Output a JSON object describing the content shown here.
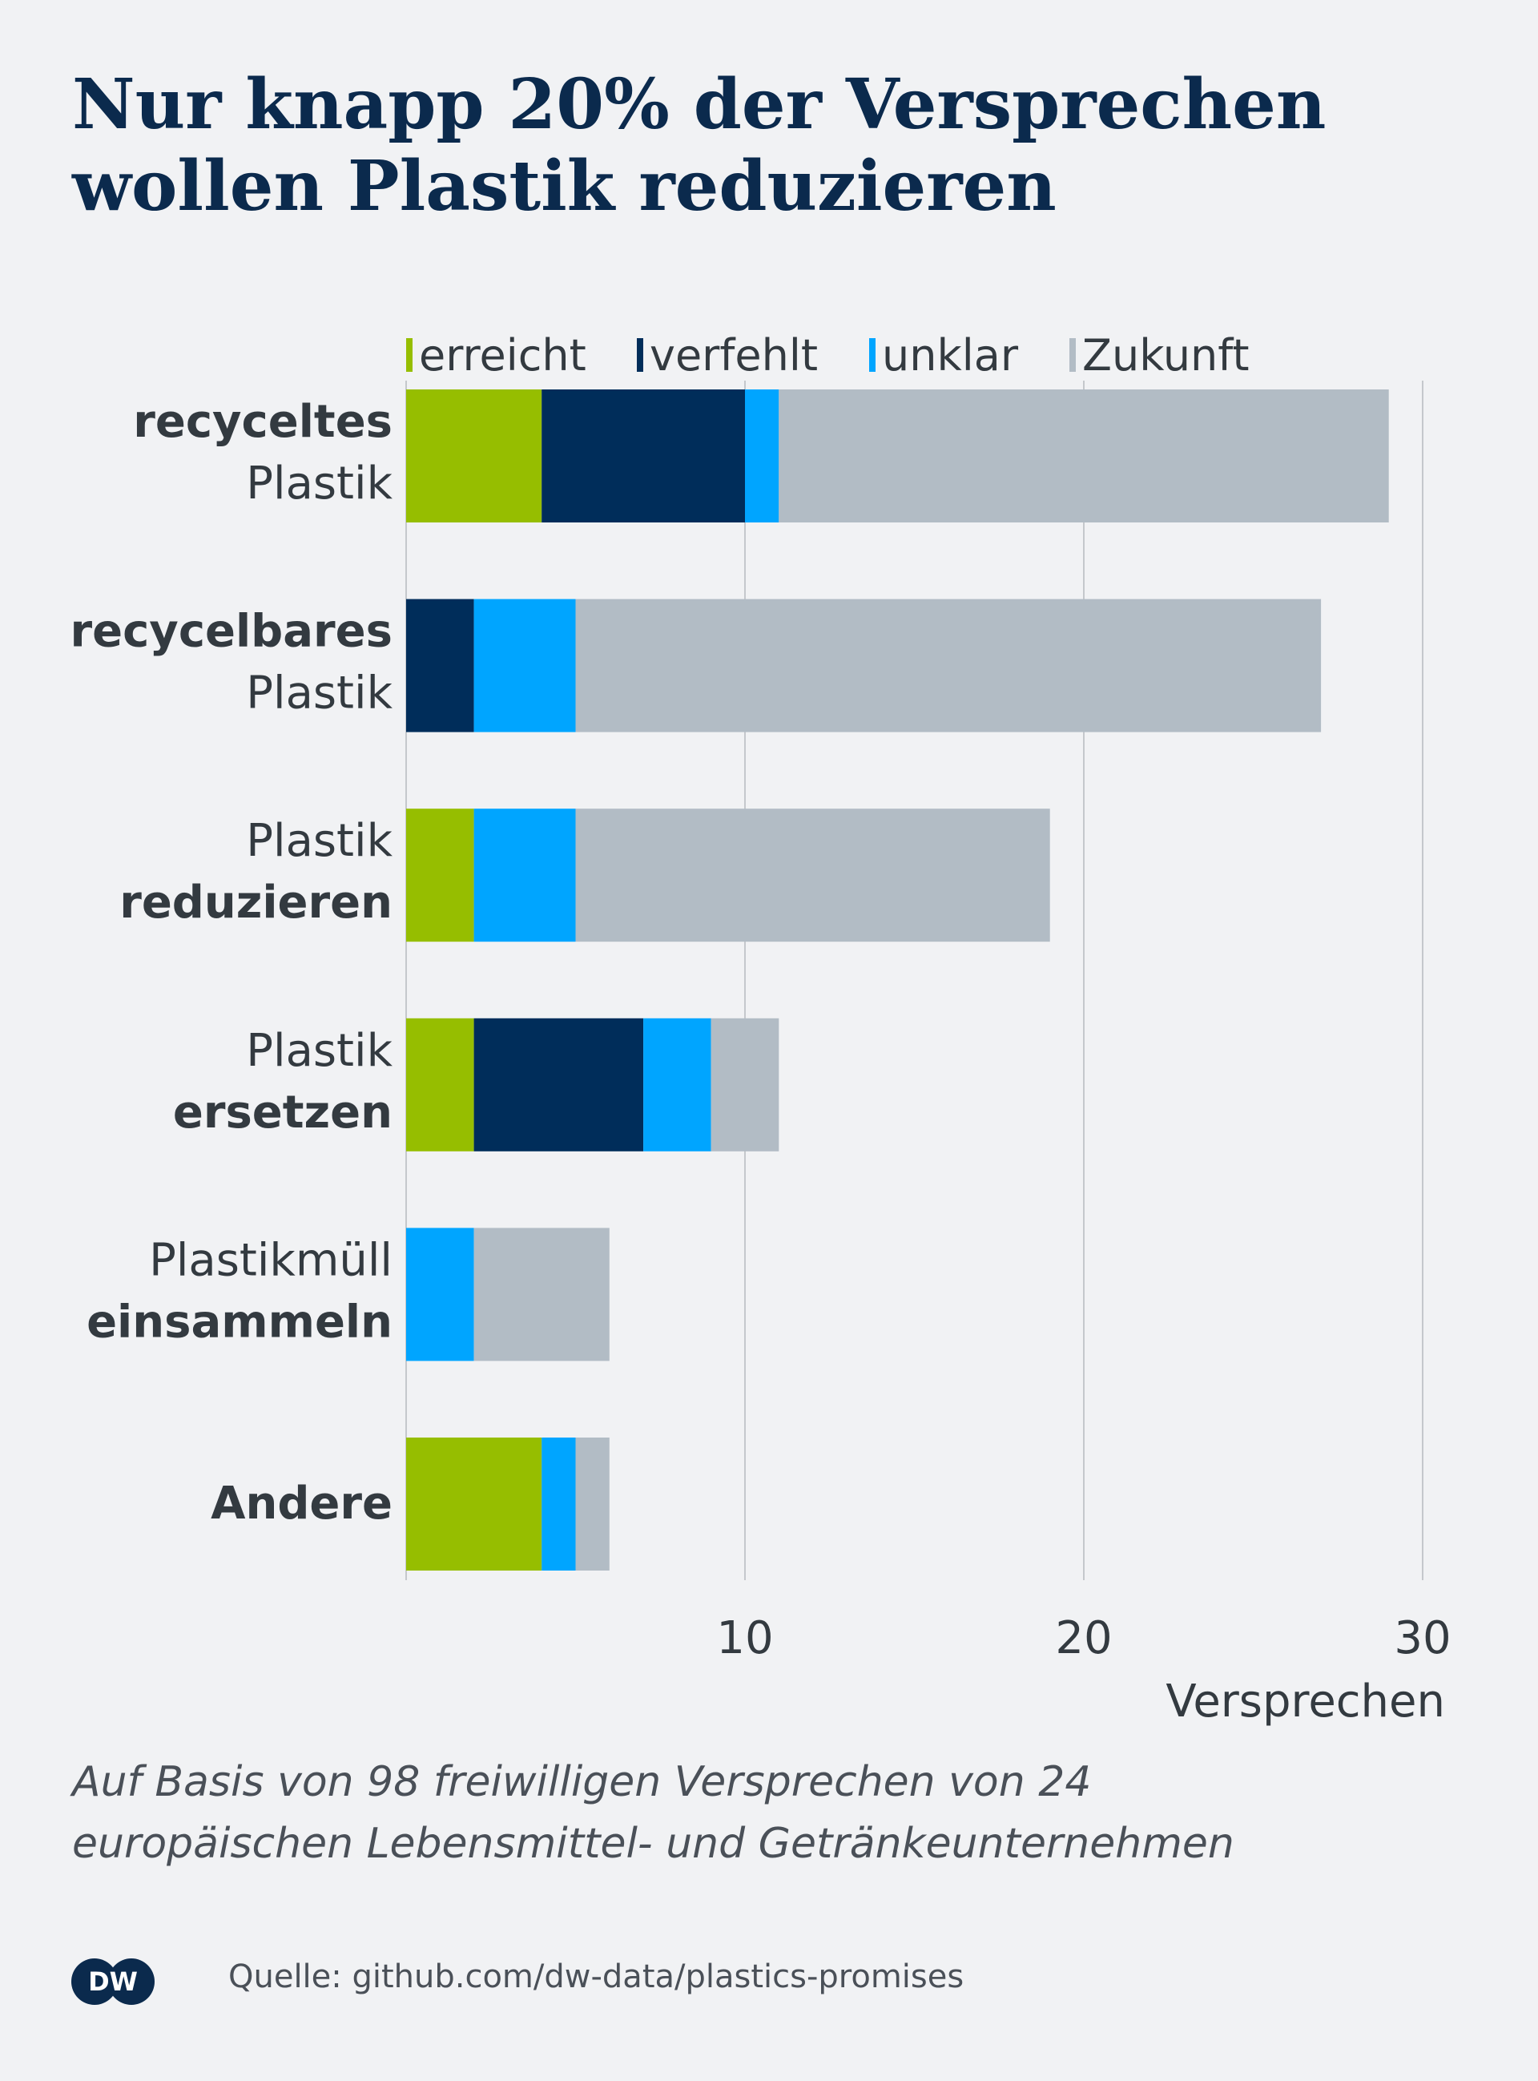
{
  "header": {
    "title_line1": "Nur knapp 20% der Versprechen",
    "title_line2": "wollen Plastik reduzieren"
  },
  "chart_data": {
    "type": "bar",
    "orientation": "horizontal",
    "stacked": true,
    "categories": [
      {
        "line1": "recyceltes",
        "line1_bold": true,
        "line2": "Plastik",
        "line2_bold": false
      },
      {
        "line1": "recycelbares",
        "line1_bold": true,
        "line2": "Plastik",
        "line2_bold": false
      },
      {
        "line1": "Plastik",
        "line1_bold": false,
        "line2": "reduzieren",
        "line2_bold": true
      },
      {
        "line1": "Plastik",
        "line1_bold": false,
        "line2": "ersetzen",
        "line2_bold": true
      },
      {
        "line1": "Plastikmüll",
        "line1_bold": false,
        "line2": "einsammeln",
        "line2_bold": true
      },
      {
        "line1": "Andere",
        "line1_bold": true,
        "line2": "",
        "line2_bold": false
      }
    ],
    "series": [
      {
        "name": "erreicht",
        "color": "#96be00",
        "values": [
          4,
          0,
          2,
          2,
          0,
          4
        ]
      },
      {
        "name": "verfehlt",
        "color": "#002d5a",
        "values": [
          6,
          2,
          0,
          5,
          0,
          0
        ]
      },
      {
        "name": "unklar",
        "color": "#00a5ff",
        "values": [
          1,
          3,
          3,
          2,
          2,
          1
        ]
      },
      {
        "name": "Zukunft",
        "color": "#b2bcc5",
        "values": [
          18,
          22,
          14,
          2,
          4,
          1
        ]
      }
    ],
    "xlim": [
      0,
      30
    ],
    "xticks": [
      10,
      20,
      30
    ],
    "xlabel": "Versprechen",
    "grid": true,
    "legend_position": "top"
  },
  "footer": {
    "note_line1": "Auf Basis von 98 freiwilligen Versprechen von 24",
    "note_line2": "europäischen Lebensmittel- und Getränkeunternehmen",
    "logo_text": "DW",
    "source": "Quelle: github.com/dw-data/plastics-promises"
  }
}
